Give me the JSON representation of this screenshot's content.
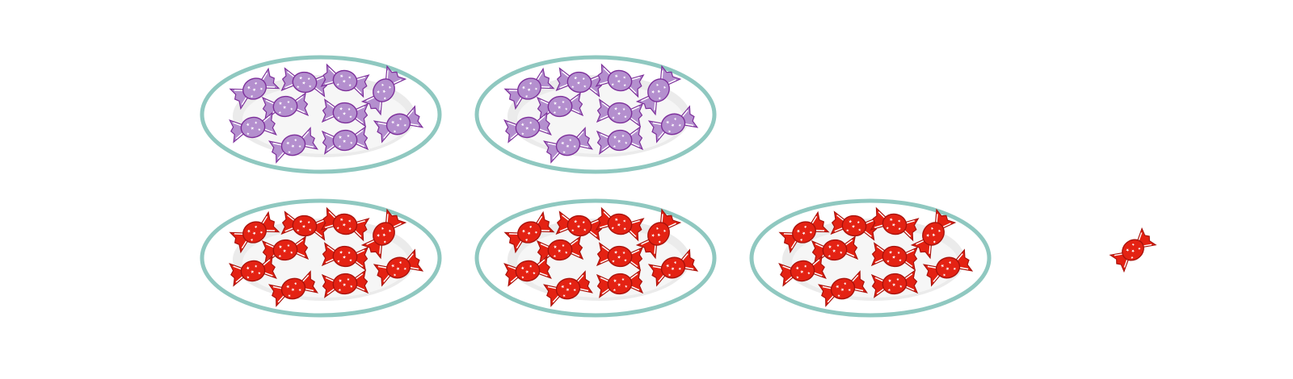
{
  "rows": [
    {
      "name": "purple-row",
      "candy_color": "purple",
      "plates": 2,
      "candies_per_plate": 10,
      "loose_candies": 0
    },
    {
      "name": "red-row",
      "candy_color": "red",
      "plates": 3,
      "candies_per_plate": 10,
      "loose_candies": 1
    }
  ],
  "colors": {
    "plate_rim": "#8fc8c0",
    "plate_face": "#ffffff",
    "plate_well": "#ebebeb",
    "purple_fill": "#b48fce",
    "purple_stroke": "#7d2f9b",
    "red_fill": "#e42213",
    "red_stroke": "#a8120b",
    "wrapper_stripe": "#ffffff"
  },
  "icons": {
    "plate": "plate-icon",
    "candy": "wrapped-candy-icon"
  }
}
